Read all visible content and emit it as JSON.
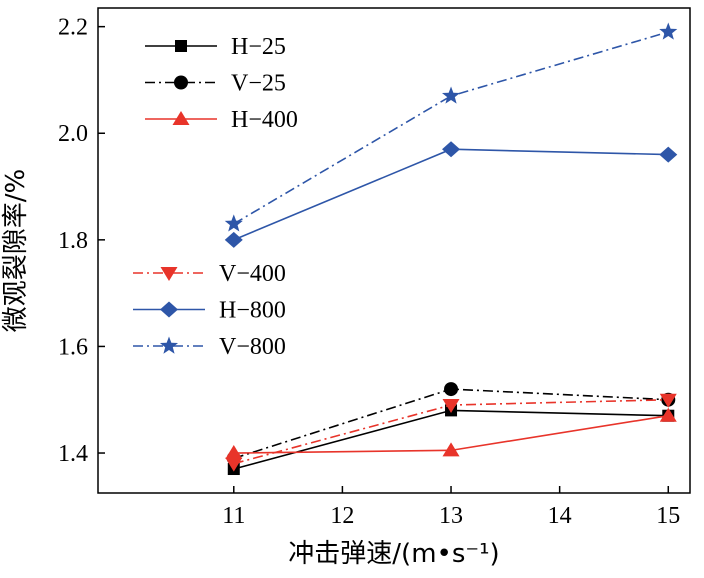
{
  "chart_data": {
    "type": "line",
    "xlabel": "冲击弹速/(m•s⁻¹)",
    "ylabel": "微观裂隙率/%",
    "x": [
      11,
      13,
      15
    ],
    "xticks": [
      11,
      12,
      13,
      14,
      15
    ],
    "yticks": [
      1.4,
      1.6,
      1.8,
      2.0,
      2.2
    ],
    "xticklabels": [
      "11",
      "12",
      "13",
      "14",
      "15"
    ],
    "yticklabels": [
      "1.4",
      "1.6",
      "1.8",
      "2.0",
      "2.2"
    ],
    "xlim": [
      9.75,
      15.2
    ],
    "ylim": [
      1.325,
      2.235
    ],
    "grid": false,
    "legend_groups": [
      {
        "placement": "top-left",
        "series": [
          "H−25",
          "V−25",
          "H−400"
        ]
      },
      {
        "placement": "middle-left",
        "series": [
          "V−400",
          "H−800",
          "V−800"
        ]
      }
    ],
    "series": [
      {
        "name": "H−25",
        "values": [
          1.37,
          1.48,
          1.47
        ],
        "color": "#000000",
        "dash": "solid",
        "marker": "square"
      },
      {
        "name": "V−25",
        "values": [
          1.39,
          1.52,
          1.5
        ],
        "color": "#000000",
        "dash": "dashdot",
        "marker": "circle"
      },
      {
        "name": "H−400",
        "values": [
          1.4,
          1.405,
          1.47
        ],
        "color": "#e8342a",
        "dash": "solid",
        "marker": "triangle-up"
      },
      {
        "name": "V−400",
        "values": [
          1.38,
          1.49,
          1.5
        ],
        "color": "#e8342a",
        "dash": "dashdot",
        "marker": "triangle-down"
      },
      {
        "name": "H−800",
        "values": [
          1.8,
          1.97,
          1.96
        ],
        "color": "#2e56a8",
        "dash": "solid",
        "marker": "diamond"
      },
      {
        "name": "V−800",
        "values": [
          1.83,
          2.07,
          2.19
        ],
        "color": "#2e56a8",
        "dash": "dashdot",
        "marker": "star"
      }
    ]
  }
}
